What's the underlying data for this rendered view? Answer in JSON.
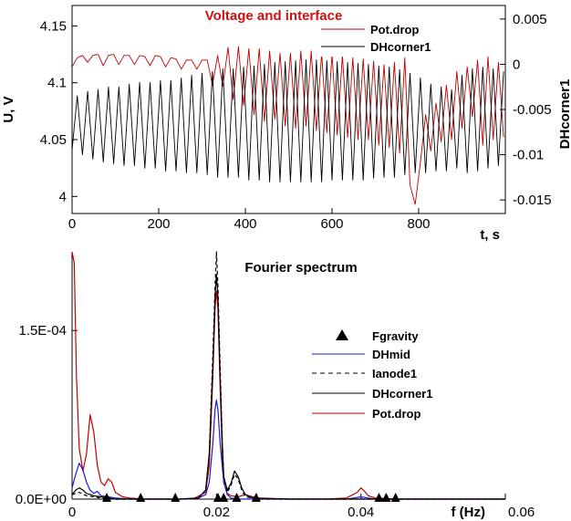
{
  "chart_data": [
    {
      "type": "line",
      "title": "Voltage and interface",
      "title_color": "#cc1111",
      "xlabel": "t, s",
      "ylabel": "U, V",
      "y2label": "DHcorner1",
      "xlim": [
        0,
        1000
      ],
      "ylim": [
        3.985,
        4.168
      ],
      "y2lim": [
        -0.0165,
        0.0065
      ],
      "x_ticks": [
        0,
        200,
        400,
        600,
        800
      ],
      "y_ticks": [
        4,
        4.05,
        4.1,
        4.15
      ],
      "y2_ticks": [
        -0.015,
        -0.01,
        -0.005,
        0,
        0.005
      ],
      "legend_position": "top-right",
      "series": [
        {
          "name": "Pot.drop",
          "axis": "left",
          "color": "#c00000",
          "x": [
            0,
            12,
            24,
            36,
            48,
            60,
            72,
            84,
            96,
            108,
            120,
            132,
            144,
            156,
            168,
            180,
            192,
            204,
            216,
            228,
            240,
            252,
            264,
            276,
            288,
            300,
            312,
            324,
            336,
            348,
            360,
            372,
            384,
            396,
            408,
            420,
            432,
            444,
            456,
            468,
            480,
            492,
            504,
            516,
            528,
            540,
            552,
            564,
            576,
            588,
            600,
            612,
            624,
            636,
            648,
            660,
            672,
            684,
            696,
            708,
            720,
            732,
            744,
            756,
            768,
            780,
            792,
            804,
            816,
            828,
            840,
            852,
            864,
            876,
            888,
            900,
            912,
            924,
            936,
            948,
            960,
            972,
            984,
            996
          ],
          "values": [
            4.114,
            4.122,
            4.124,
            4.118,
            4.124,
            4.125,
            4.115,
            4.124,
            4.125,
            4.116,
            4.124,
            4.124,
            4.116,
            4.124,
            4.123,
            4.115,
            4.124,
            4.123,
            4.114,
            4.122,
            4.121,
            4.112,
            4.12,
            4.12,
            4.112,
            4.12,
            4.12,
            4.098,
            4.124,
            4.097,
            4.131,
            4.085,
            4.132,
            4.08,
            4.13,
            4.072,
            4.13,
            4.066,
            4.128,
            4.068,
            4.126,
            4.062,
            4.126,
            4.06,
            4.128,
            4.062,
            4.128,
            4.058,
            4.126,
            4.056,
            4.125,
            4.054,
            4.124,
            4.052,
            4.122,
            4.05,
            4.121,
            4.05,
            4.119,
            4.045,
            4.116,
            4.043,
            4.118,
            4.038,
            4.122,
            4.01,
            3.993,
            4.03,
            4.072,
            4.04,
            4.082,
            4.048,
            4.098,
            4.05,
            4.11,
            4.06,
            4.114,
            4.07,
            4.12,
            4.045,
            4.123,
            4.05,
            4.118,
            4.052
          ]
        },
        {
          "name": "DHcorner1",
          "axis": "right",
          "color": "#000000",
          "x": [
            0,
            12,
            24,
            36,
            48,
            60,
            72,
            84,
            96,
            108,
            120,
            132,
            144,
            156,
            168,
            180,
            192,
            204,
            216,
            228,
            240,
            252,
            264,
            276,
            288,
            300,
            312,
            324,
            336,
            348,
            360,
            372,
            384,
            396,
            408,
            420,
            432,
            444,
            456,
            468,
            480,
            492,
            504,
            516,
            528,
            540,
            552,
            564,
            576,
            588,
            600,
            612,
            624,
            636,
            648,
            660,
            672,
            684,
            696,
            708,
            720,
            732,
            744,
            756,
            768,
            780,
            792,
            804,
            816,
            828,
            840,
            852,
            864,
            876,
            888,
            900,
            912,
            924,
            936,
            948,
            960,
            972,
            984,
            996
          ],
          "values": [
            -0.0095,
            -0.0035,
            -0.01,
            -0.003,
            -0.0105,
            -0.0028,
            -0.0108,
            -0.0025,
            -0.011,
            -0.0025,
            -0.0112,
            -0.0022,
            -0.0112,
            -0.002,
            -0.0115,
            -0.002,
            -0.0115,
            -0.0018,
            -0.0118,
            -0.0018,
            -0.0118,
            -0.0015,
            -0.012,
            -0.0012,
            -0.012,
            -0.001,
            -0.0122,
            -0.0008,
            -0.0125,
            -0.0005,
            -0.0125,
            -0.0005,
            -0.0125,
            -0.0003,
            -0.0128,
            -0.0002,
            -0.0128,
            0,
            -0.013,
            0.0002,
            -0.013,
            0.0003,
            -0.013,
            0.0004,
            -0.013,
            0.0005,
            -0.013,
            0.0005,
            -0.013,
            0.0004,
            -0.0128,
            0.0003,
            -0.0128,
            0.0002,
            -0.0128,
            0.0001,
            -0.0128,
            0,
            -0.0126,
            -0.0002,
            -0.0125,
            -0.0003,
            -0.0125,
            -0.0006,
            -0.0122,
            -0.001,
            -0.012,
            -0.0015,
            -0.012,
            -0.0022,
            -0.0118,
            -0.0025,
            -0.0118,
            -0.0028,
            -0.0115,
            -0.0012,
            -0.012,
            -0.0005,
            -0.0118,
            -0.0003,
            -0.0115,
            -0.0005,
            -0.0112,
            -0.0008
          ]
        }
      ]
    },
    {
      "type": "line",
      "title": "Fourier spectrum",
      "xlabel": "f (Hz)",
      "ylabel": "",
      "xlim": [
        0,
        0.06
      ],
      "ylim": [
        0,
        0.00022
      ],
      "x_ticks": [
        0,
        0.02,
        0.04,
        0.06
      ],
      "x_tick_labels": [
        "0",
        "0.02",
        "0.04",
        "0.06"
      ],
      "y_ticks": [
        0,
        0.00015
      ],
      "y_tick_labels": [
        "0.0E+00",
        "1.5E-04"
      ],
      "legend_position": "center-right",
      "series": [
        {
          "name": "Fgravity",
          "style": "triangle-markers",
          "color": "#000000",
          "x": [
            0.0048,
            0.0095,
            0.0143,
            0.0202,
            0.021,
            0.0228,
            0.0255,
            0.0425,
            0.0435,
            0.0448
          ],
          "values": [
            0,
            0,
            0,
            0,
            0,
            0,
            0,
            0,
            0,
            0
          ]
        },
        {
          "name": "DHmid",
          "style": "solid",
          "color": "#1a1acc",
          "x": [
            0,
            0.0005,
            0.001,
            0.0015,
            0.002,
            0.0025,
            0.003,
            0.0035,
            0.004,
            0.005,
            0.006,
            0.008,
            0.01,
            0.012,
            0.014,
            0.016,
            0.0175,
            0.0185,
            0.019,
            0.0195,
            0.0198,
            0.02,
            0.0202,
            0.0205,
            0.021,
            0.0215,
            0.022,
            0.023,
            0.024,
            0.026,
            0.03,
            0.035,
            0.038,
            0.039,
            0.04,
            0.041,
            0.042,
            0.045,
            0.05,
            0.06
          ],
          "values": [
            1e-05,
            2.2e-05,
            3.2e-05,
            2.6e-05,
            1.5e-05,
            8e-06,
            5e-06,
            7e-06,
            3e-06,
            2e-06,
            1e-06,
            0,
            0,
            0,
            0,
            0,
            1e-06,
            4e-06,
            1.5e-05,
            5e-05,
            8e-05,
            8.8e-05,
            8e-05,
            5e-05,
            1.5e-05,
            4e-06,
            1e-06,
            0,
            0,
            0,
            0,
            0,
            0,
            1e-06,
            2e-06,
            1e-06,
            0,
            0,
            0,
            0
          ]
        },
        {
          "name": "Ianode1",
          "style": "dashed",
          "color": "#000000",
          "x": [
            0,
            0.001,
            0.002,
            0.004,
            0.006,
            0.01,
            0.015,
            0.0175,
            0.0185,
            0.019,
            0.0195,
            0.0198,
            0.02,
            0.0202,
            0.0205,
            0.0208,
            0.021,
            0.0215,
            0.022,
            0.0225,
            0.023,
            0.0235,
            0.024,
            0.026,
            0.03,
            0.04,
            0.06
          ],
          "values": [
            4e-06,
            6e-06,
            3e-06,
            1e-06,
            0,
            0,
            0,
            1e-06,
            8e-06,
            4e-05,
            0.00013,
            0.00019,
            0.00022,
            0.00019,
            0.00012,
            5e-05,
            2e-05,
            6e-06,
            1.2e-05,
            2.2e-05,
            1.8e-05,
            8e-06,
            2e-06,
            0,
            0,
            0,
            0
          ]
        },
        {
          "name": "DHcorner1",
          "style": "solid",
          "color": "#000000",
          "x": [
            0,
            0.0005,
            0.001,
            0.0015,
            0.002,
            0.003,
            0.004,
            0.005,
            0.006,
            0.008,
            0.01,
            0.015,
            0.0175,
            0.0185,
            0.019,
            0.0195,
            0.0198,
            0.02,
            0.0202,
            0.0205,
            0.0208,
            0.021,
            0.0215,
            0.022,
            0.0225,
            0.023,
            0.0235,
            0.024,
            0.025,
            0.03,
            0.04,
            0.06
          ],
          "values": [
            4e-06,
            8e-06,
            1e-05,
            8e-06,
            5e-06,
            3e-06,
            2e-06,
            1e-06,
            0,
            0,
            0,
            0,
            1e-06,
            8e-06,
            4e-05,
            0.00012,
            0.00018,
            0.0002,
            0.00018,
            0.00011,
            5e-05,
            2e-05,
            8e-06,
            1.4e-05,
            2.5e-05,
            2e-05,
            1e-05,
            4e-06,
            1e-06,
            0,
            0,
            0
          ]
        },
        {
          "name": "Pot.drop",
          "style": "solid",
          "color": "#c00000",
          "x": [
            0,
            0.0003,
            0.0006,
            0.001,
            0.0015,
            0.002,
            0.0025,
            0.003,
            0.0035,
            0.004,
            0.0045,
            0.005,
            0.0055,
            0.006,
            0.007,
            0.008,
            0.01,
            0.012,
            0.015,
            0.017,
            0.0185,
            0.019,
            0.0195,
            0.0198,
            0.02,
            0.0202,
            0.0205,
            0.0208,
            0.021,
            0.0215,
            0.022,
            0.023,
            0.024,
            0.025,
            0.026,
            0.03,
            0.035,
            0.038,
            0.0395,
            0.04,
            0.0405,
            0.041,
            0.042,
            0.045,
            0.05,
            0.06
          ],
          "values": [
            0.00022,
            0.00021,
            0.00011,
            4.5e-05,
            2.5e-05,
            4e-05,
            7.5e-05,
            6e-05,
            3e-05,
            1.5e-05,
            1.2e-05,
            1.8e-05,
            1.5e-05,
            6e-06,
            2e-06,
            1e-06,
            0,
            0,
            0,
            1e-06,
            6e-06,
            3e-05,
            0.00011,
            0.00017,
            0.000185,
            0.00017,
            0.0001,
            4e-05,
            1.5e-05,
            5e-06,
            3e-06,
            2e-06,
            4e-06,
            2e-06,
            1e-06,
            0,
            0,
            1e-06,
            6e-06,
            1e-05,
            7e-06,
            3e-06,
            1e-06,
            0,
            0,
            0
          ]
        }
      ]
    }
  ]
}
